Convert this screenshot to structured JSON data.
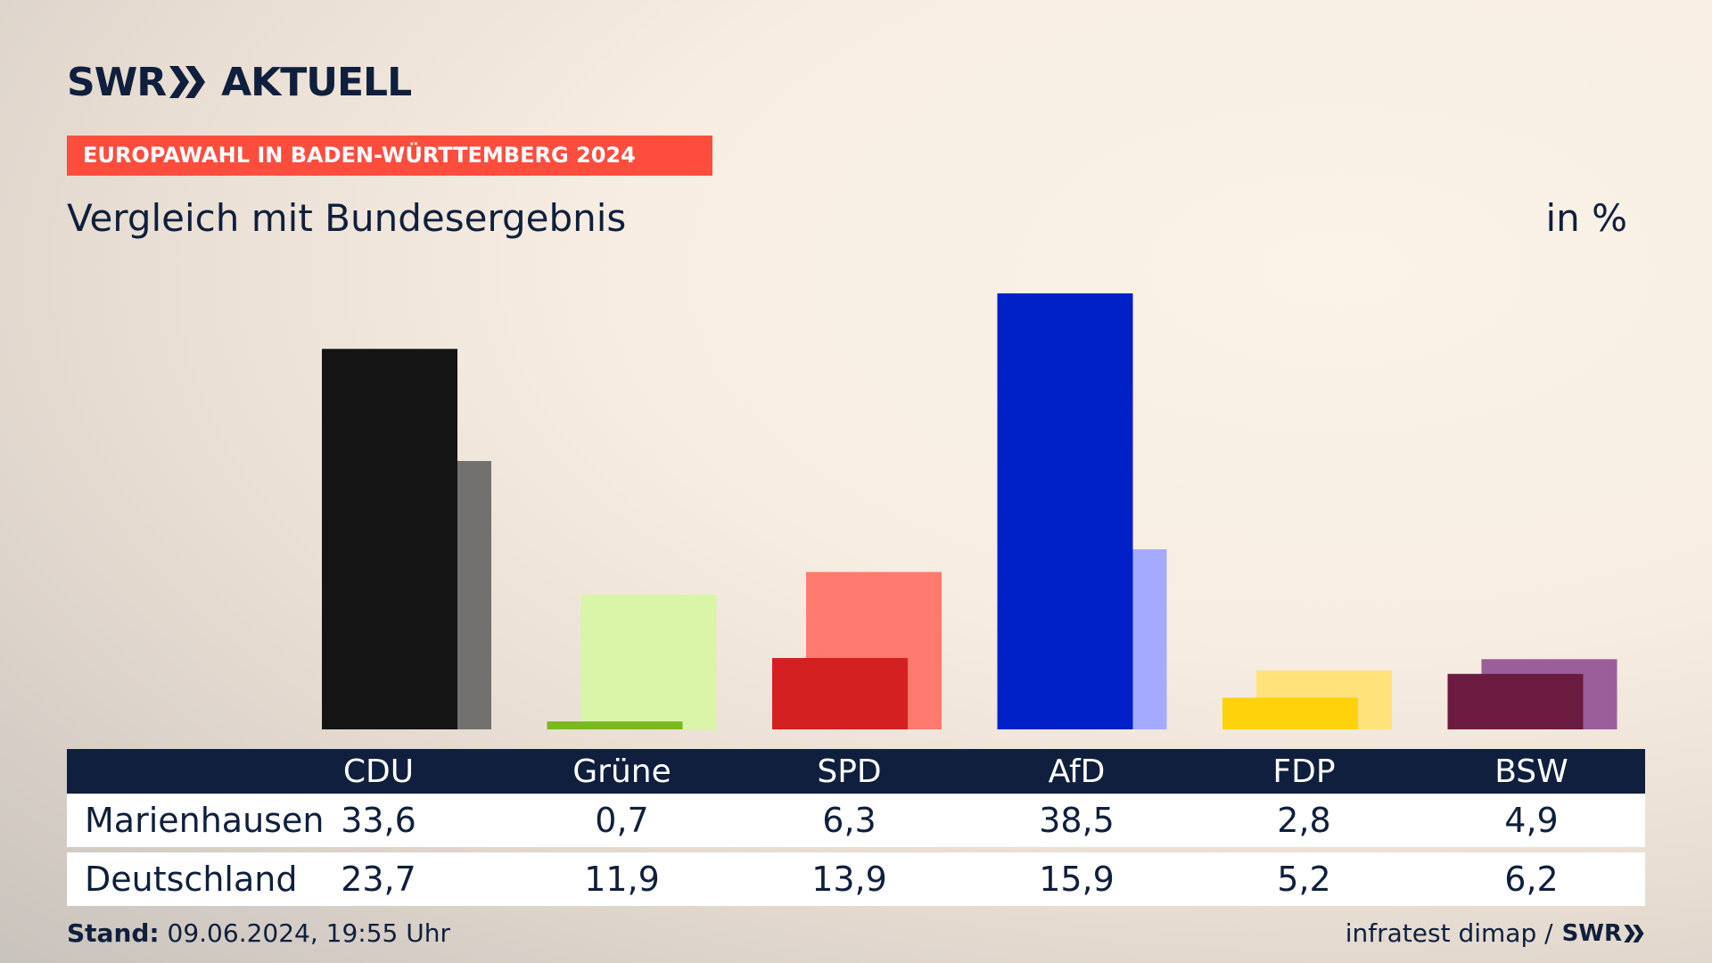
{
  "brand": {
    "logo_text": "SWR",
    "logo_suffix": "AKTUELL"
  },
  "kicker": "EUROPAWAHL IN BADEN-WÜRTTEMBERG 2024",
  "title": "Vergleich mit Bundesergebnis",
  "unit": "in %",
  "table": {
    "rows": [
      {
        "label": "Marienhausen",
        "values": [
          "33,6",
          "0,7",
          "6,3",
          "38,5",
          "2,8",
          "4,9"
        ]
      },
      {
        "label": "Deutschland",
        "values": [
          "23,7",
          "11,9",
          "13,9",
          "15,9",
          "5,2",
          "6,2"
        ]
      }
    ]
  },
  "footer": {
    "stand_label": "Stand:",
    "stand_value": "09.06.2024, 19:55 Uhr",
    "source": "infratest dimap /",
    "source_logo": "SWR"
  },
  "chart_data": {
    "type": "bar",
    "categories": [
      "CDU",
      "Grüne",
      "SPD",
      "AfD",
      "FDP",
      "BSW"
    ],
    "series": [
      {
        "name": "Marienhausen",
        "values": [
          33.6,
          0.7,
          6.3,
          38.5,
          2.8,
          4.9
        ]
      },
      {
        "name": "Deutschland",
        "values": [
          23.7,
          11.9,
          13.9,
          15.9,
          5.2,
          6.2
        ]
      }
    ],
    "colors": {
      "primary": [
        "#141414",
        "#7ab81f",
        "#d42020",
        "#0020c8",
        "#ffd10a",
        "#6b1a40"
      ],
      "secondary": [
        "#737170",
        "#d8f5a8",
        "#ff7a6e",
        "#a3aaff",
        "#ffe37a",
        "#9b5e9a"
      ]
    },
    "ylim": [
      0,
      40
    ],
    "grid": false
  }
}
